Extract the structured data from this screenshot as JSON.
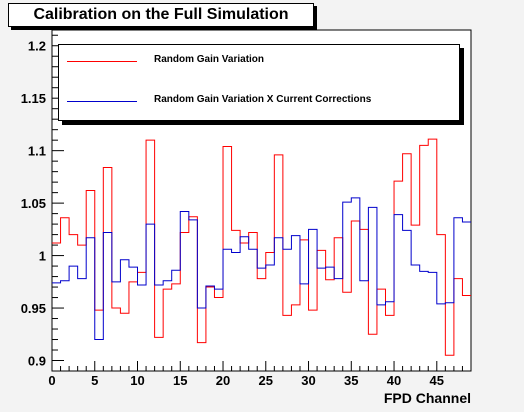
{
  "chart_data": {
    "type": "line",
    "title": "Calibration on the Full Simulation",
    "xlabel": "FPD Channel",
    "ylabel": "",
    "xlim": [
      0,
      49
    ],
    "ylim": [
      0.89,
      1.215
    ],
    "x_ticks": [
      0,
      5,
      10,
      15,
      20,
      25,
      30,
      35,
      40,
      45
    ],
    "y_ticks": [
      0.9,
      0.95,
      1,
      1.05,
      1.1,
      1.15,
      1.2
    ],
    "x_tick_labels": [
      "0",
      "5",
      "10",
      "15",
      "20",
      "25",
      "30",
      "35",
      "40",
      "45"
    ],
    "y_tick_labels": [
      "0.9",
      "0.95",
      "1",
      "1.05",
      "1.1",
      "1.15",
      "1.2"
    ],
    "grid": false,
    "legend_position": "top",
    "series": [
      {
        "name": "Random Gain Variation",
        "color": "#ff0000",
        "values": [
          1.012,
          1.036,
          1.02,
          1.01,
          1.062,
          0.948,
          1.084,
          0.95,
          0.945,
          0.975,
          0.984,
          1.11,
          0.922,
          0.968,
          0.973,
          1.022,
          1.037,
          0.917,
          0.97,
          0.96,
          1.104,
          1.024,
          1.012,
          1.022,
          0.978,
          1.003,
          1.096,
          0.943,
          0.953,
          1.015,
          0.948,
          1.005,
          0.977,
          1.017,
          0.965,
          1.033,
          1.025,
          0.925,
          0.968,
          0.943,
          1.071,
          1.097,
          1.029,
          1.105,
          1.111,
          1.02,
          0.905,
          0.978,
          0.962
        ]
      },
      {
        "name": "Random Gain Variation X Current Corrections",
        "color": "#0000cc",
        "values": [
          0.974,
          0.976,
          0.99,
          0.978,
          1.017,
          0.92,
          1.022,
          0.975,
          0.996,
          0.989,
          0.972,
          1.03,
          0.972,
          0.976,
          0.986,
          1.042,
          1.034,
          0.95,
          0.971,
          0.968,
          1.006,
          1.003,
          1.018,
          1.006,
          0.988,
          0.991,
          1.017,
          1.006,
          1.019,
          0.973,
          1.025,
          0.988,
          0.989,
          0.978,
          1.051,
          1.055,
          0.976,
          1.046,
          0.953,
          0.956,
          1.039,
          1.024,
          0.991,
          0.985,
          0.984,
          0.954,
          0.955,
          1.036,
          1.032
        ]
      }
    ]
  }
}
